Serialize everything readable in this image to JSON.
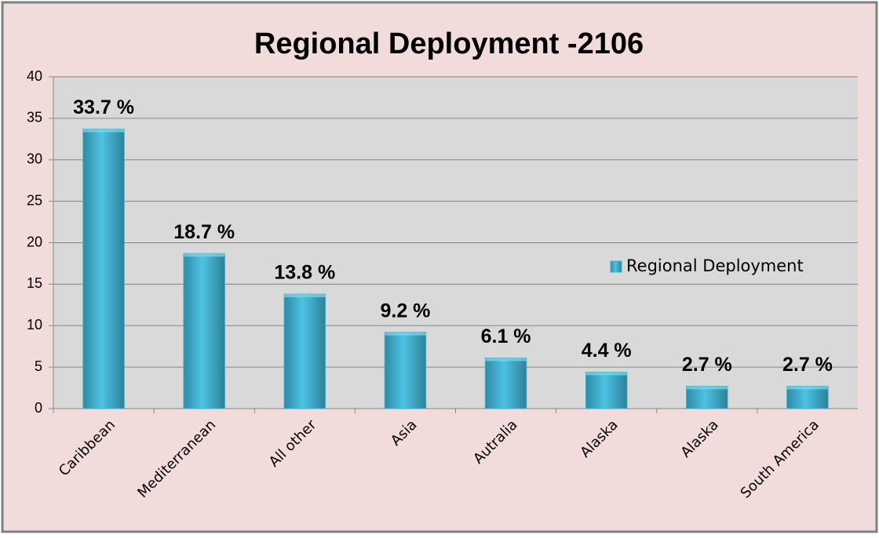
{
  "chart_data": {
    "type": "bar",
    "title": "Regional Deployment -2106",
    "categories": [
      "Caribbean",
      "Mediterranean",
      "All other",
      "Asia",
      "Autralia",
      "Alaska",
      "Alaska",
      "South America"
    ],
    "series": [
      {
        "name": "Regional Deployment",
        "color": "#4bacc6",
        "values": [
          33.7,
          18.7,
          13.8,
          9.2,
          6.1,
          4.4,
          2.7,
          2.7
        ],
        "value_labels": [
          "33.7 %",
          "18.7 %",
          "13.8 %",
          "9.2 %",
          "6.1 %",
          "4.4 %",
          "2.7 %",
          "2.7 %"
        ]
      }
    ],
    "ylim": [
      0,
      40
    ],
    "yticks": [
      0,
      5,
      10,
      15,
      20,
      25,
      30,
      35,
      40
    ],
    "grid": true,
    "legend": "right"
  }
}
